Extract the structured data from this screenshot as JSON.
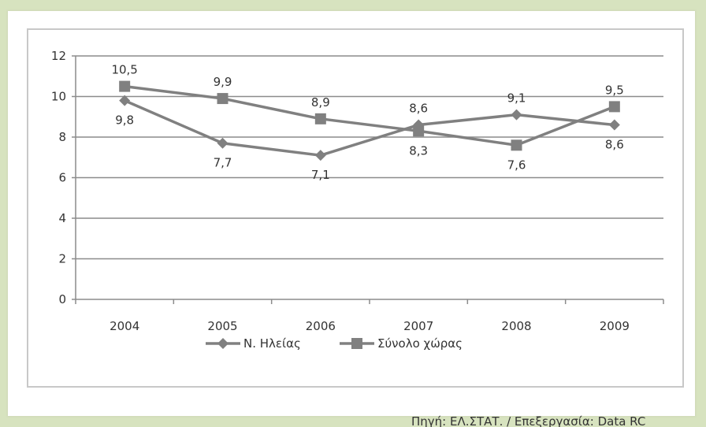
{
  "chart_data": {
    "type": "line",
    "categories": [
      "2004",
      "2005",
      "2006",
      "2007",
      "2008",
      "2009"
    ],
    "series": [
      {
        "name": "Ν. Ηλείας",
        "marker": "diamond",
        "values": [
          9.8,
          7.7,
          7.1,
          8.6,
          9.1,
          8.6
        ],
        "labels": [
          "9,8",
          "7,7",
          "7,1",
          "8,6",
          "9,1",
          "8,6"
        ]
      },
      {
        "name": "Σύνολο χώρας",
        "marker": "square",
        "values": [
          10.5,
          9.9,
          8.9,
          8.3,
          7.6,
          9.5
        ],
        "labels": [
          "10,5",
          "9,9",
          "8,9",
          "8,3",
          "7,6",
          "9,5"
        ]
      }
    ],
    "yticks": [
      "0",
      "2",
      "4",
      "6",
      "8",
      "10",
      "12"
    ],
    "ylim": [
      0,
      12
    ],
    "grid": true,
    "legend_position": "bottom",
    "line_color": "#808080"
  },
  "source": "Πηγή: ΕΛ.ΣΤΑΤ. / Επεξεργασία: Data RC"
}
